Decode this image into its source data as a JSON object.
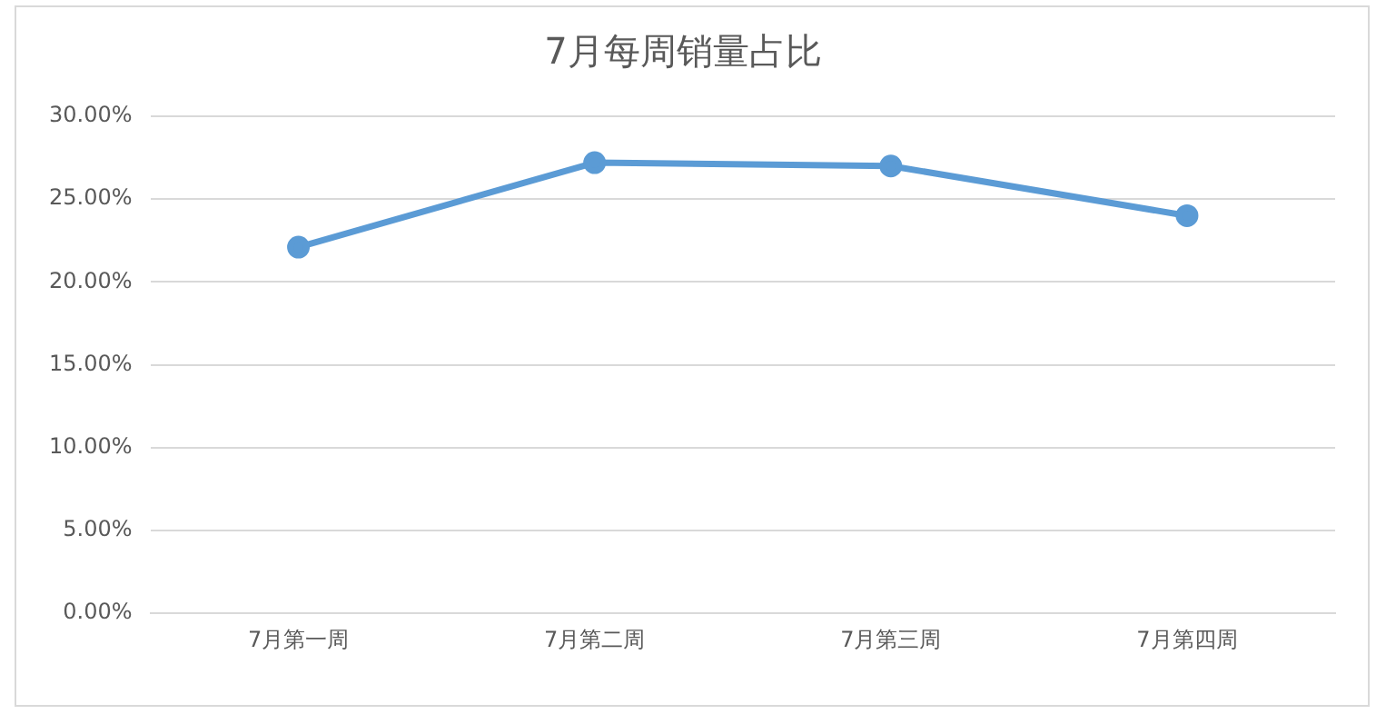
{
  "chart_data": {
    "type": "line",
    "title": "7月每周销量占比",
    "categories": [
      "7月第一周",
      "7月第二周",
      "7月第三周",
      "7月第四周"
    ],
    "series": [
      {
        "color": "#5b9bd5",
        "values": [
          22.1,
          27.2,
          27.0,
          24.0
        ]
      }
    ],
    "ylim": [
      0,
      30
    ],
    "yticks": [
      {
        "value": 0,
        "label": "0.00%"
      },
      {
        "value": 5,
        "label": "5.00%"
      },
      {
        "value": 10,
        "label": "10.00%"
      },
      {
        "value": 15,
        "label": "15.00%"
      },
      {
        "value": 20,
        "label": "20.00%"
      },
      {
        "value": 25,
        "label": "25.00%"
      },
      {
        "value": 30,
        "label": "30.00%"
      }
    ],
    "grid": "y",
    "legend": false,
    "marker": "circle",
    "line_style": "solid"
  }
}
